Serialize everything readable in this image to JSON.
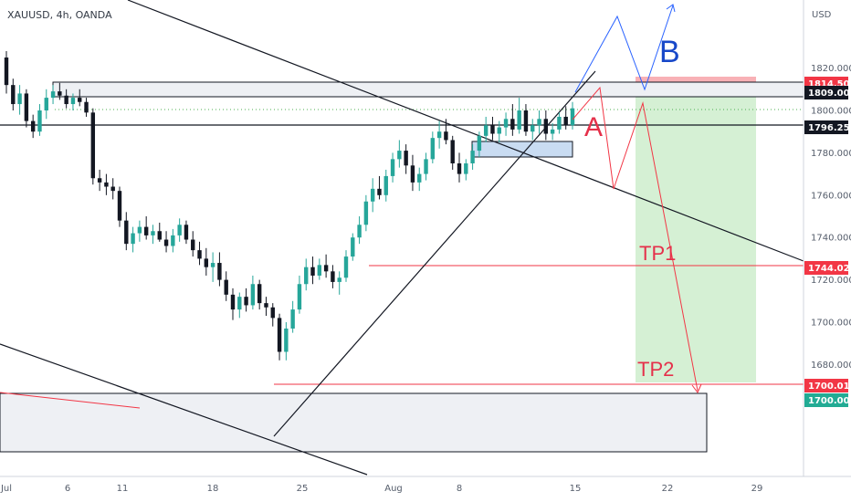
{
  "chart_data": {
    "type": "candlestick",
    "symbol_label": "XAUUSD, 4h, OANDA",
    "currency_label": "USD",
    "x_tick_labels": [
      "Jul",
      "6",
      "11",
      "18",
      "25",
      "Aug",
      "8",
      "15",
      "22",
      "29"
    ],
    "y_tick_labels": [
      "1820.000",
      "1800.000",
      "1780.000",
      "1760.000",
      "1740.000",
      "1720.000",
      "1700.000",
      "1680.000"
    ],
    "y_range": [
      1670,
      1830
    ],
    "price_tags": [
      {
        "label": "1814.500",
        "value": 1814.5,
        "bg": "#f23645",
        "fg": "#ffffff"
      },
      {
        "label": "1809.000",
        "value": 1809.0,
        "bg": "#131722",
        "fg": "#ffffff"
      },
      {
        "label": "1796.252",
        "value": 1796.252,
        "bg": "#131722",
        "fg": "#ffffff"
      },
      {
        "label": "1744.021",
        "value": 1744.021,
        "bg": "#f23645",
        "fg": "#ffffff"
      },
      {
        "label": "1700.015",
        "value": 1700.015,
        "bg": "#f23645",
        "fg": "#ffffff"
      },
      {
        "label": "1700.000",
        "value": 1700.0,
        "bg": "#22ab94",
        "fg": "#ffffff"
      }
    ],
    "annotations": [
      {
        "text": "A",
        "color": "#e5304a"
      },
      {
        "text": "B",
        "color": "#1848c9"
      },
      {
        "text": "TP1",
        "color": "#e5304a"
      },
      {
        "text": "TP2",
        "color": "#e5304a"
      }
    ],
    "candles": [
      [
        1825,
        1828,
        1808,
        1812
      ],
      [
        1812,
        1815,
        1800,
        1803
      ],
      [
        1803,
        1812,
        1798,
        1808
      ],
      [
        1808,
        1810,
        1792,
        1795
      ],
      [
        1795,
        1798,
        1787,
        1790
      ],
      [
        1790,
        1803,
        1788,
        1800
      ],
      [
        1800,
        1810,
        1796,
        1806
      ],
      [
        1806,
        1812,
        1803,
        1809
      ],
      [
        1809,
        1813,
        1805,
        1807
      ],
      [
        1807,
        1810,
        1801,
        1803
      ],
      [
        1803,
        1808,
        1800,
        1806
      ],
      [
        1806,
        1810,
        1802,
        1804
      ],
      [
        1804,
        1806,
        1797,
        1799
      ],
      [
        1799,
        1801,
        1765,
        1768
      ],
      [
        1768,
        1772,
        1762,
        1766
      ],
      [
        1766,
        1770,
        1760,
        1764
      ],
      [
        1764,
        1768,
        1758,
        1762
      ],
      [
        1762,
        1764,
        1745,
        1748
      ],
      [
        1748,
        1752,
        1734,
        1737
      ],
      [
        1737,
        1745,
        1733,
        1742
      ],
      [
        1742,
        1748,
        1738,
        1745
      ],
      [
        1745,
        1750,
        1739,
        1741
      ],
      [
        1741,
        1746,
        1737,
        1743
      ],
      [
        1743,
        1747,
        1738,
        1739
      ],
      [
        1739,
        1743,
        1733,
        1736
      ],
      [
        1736,
        1744,
        1733,
        1741
      ],
      [
        1741,
        1749,
        1738,
        1746
      ],
      [
        1746,
        1748,
        1737,
        1739
      ],
      [
        1739,
        1743,
        1731,
        1734
      ],
      [
        1734,
        1738,
        1727,
        1730
      ],
      [
        1730,
        1735,
        1722,
        1726
      ],
      [
        1726,
        1733,
        1719,
        1728
      ],
      [
        1728,
        1733,
        1717,
        1720
      ],
      [
        1720,
        1724,
        1710,
        1713
      ],
      [
        1713,
        1716,
        1701,
        1706
      ],
      [
        1706,
        1714,
        1702,
        1712
      ],
      [
        1712,
        1716,
        1705,
        1708
      ],
      [
        1708,
        1722,
        1706,
        1718
      ],
      [
        1718,
        1720,
        1706,
        1709
      ],
      [
        1709,
        1712,
        1703,
        1707
      ],
      [
        1707,
        1709,
        1698,
        1702
      ],
      [
        1702,
        1704,
        1682,
        1686
      ],
      [
        1686,
        1700,
        1682,
        1697
      ],
      [
        1697,
        1710,
        1695,
        1706
      ],
      [
        1706,
        1722,
        1704,
        1718
      ],
      [
        1718,
        1730,
        1715,
        1726
      ],
      [
        1726,
        1731,
        1718,
        1722
      ],
      [
        1722,
        1730,
        1720,
        1727
      ],
      [
        1727,
        1732,
        1721,
        1724
      ],
      [
        1724,
        1727,
        1716,
        1719
      ],
      [
        1719,
        1724,
        1713,
        1721
      ],
      [
        1721,
        1734,
        1719,
        1731
      ],
      [
        1731,
        1742,
        1729,
        1740
      ],
      [
        1740,
        1750,
        1737,
        1746
      ],
      [
        1746,
        1760,
        1743,
        1757
      ],
      [
        1757,
        1768,
        1752,
        1763
      ],
      [
        1763,
        1769,
        1758,
        1760
      ],
      [
        1760,
        1772,
        1757,
        1769
      ],
      [
        1769,
        1780,
        1766,
        1777
      ],
      [
        1777,
        1786,
        1773,
        1781
      ],
      [
        1781,
        1784,
        1770,
        1774
      ],
      [
        1774,
        1779,
        1762,
        1766
      ],
      [
        1766,
        1773,
        1762,
        1770
      ],
      [
        1770,
        1780,
        1767,
        1777
      ],
      [
        1777,
        1790,
        1775,
        1787
      ],
      [
        1787,
        1795,
        1782,
        1790
      ],
      [
        1790,
        1796,
        1784,
        1786
      ],
      [
        1786,
        1788,
        1772,
        1775
      ],
      [
        1775,
        1780,
        1766,
        1770
      ],
      [
        1770,
        1777,
        1767,
        1775
      ],
      [
        1775,
        1784,
        1772,
        1781
      ],
      [
        1781,
        1790,
        1778,
        1788
      ],
      [
        1788,
        1797,
        1785,
        1793
      ],
      [
        1793,
        1797,
        1786,
        1789
      ],
      [
        1789,
        1795,
        1785,
        1792
      ],
      [
        1792,
        1799,
        1788,
        1796
      ],
      [
        1796,
        1803,
        1788,
        1791
      ],
      [
        1791,
        1806,
        1789,
        1800
      ],
      [
        1800,
        1803,
        1788,
        1790
      ],
      [
        1790,
        1796,
        1786,
        1793
      ],
      [
        1793,
        1800,
        1789,
        1796
      ],
      [
        1796,
        1800,
        1786,
        1789
      ],
      [
        1789,
        1794,
        1786,
        1791
      ],
      [
        1791,
        1799,
        1789,
        1797
      ],
      [
        1797,
        1802,
        1791,
        1793
      ],
      [
        1793,
        1804,
        1791,
        1801
      ]
    ]
  }
}
